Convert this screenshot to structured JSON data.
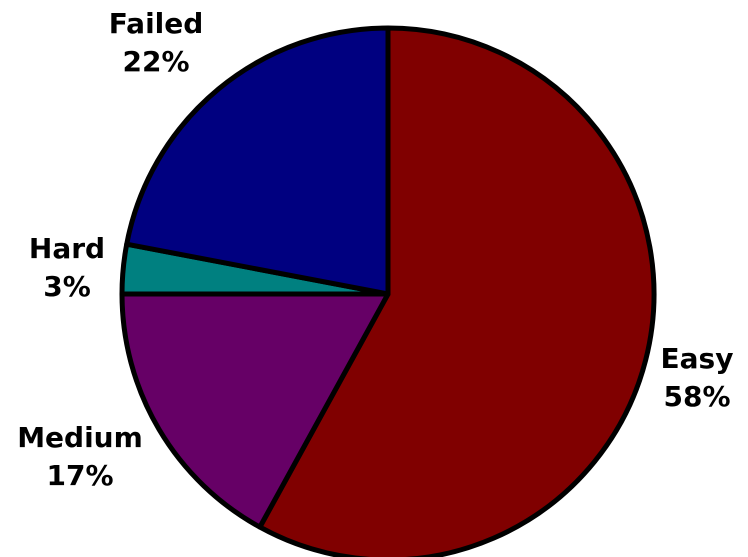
{
  "chart_data": {
    "type": "pie",
    "title": "",
    "start_angle_deg": 0,
    "direction": "clockwise",
    "legend": "none",
    "slices": [
      {
        "name": "Easy",
        "value": 58,
        "label": "58%",
        "color": "#800000"
      },
      {
        "name": "Medium",
        "value": 17,
        "label": "17%",
        "color": "#660066"
      },
      {
        "name": "Hard",
        "value": 3,
        "label": "3%",
        "color": "#008080"
      },
      {
        "name": "Failed",
        "value": 22,
        "label": "22%",
        "color": "#000080"
      }
    ]
  }
}
